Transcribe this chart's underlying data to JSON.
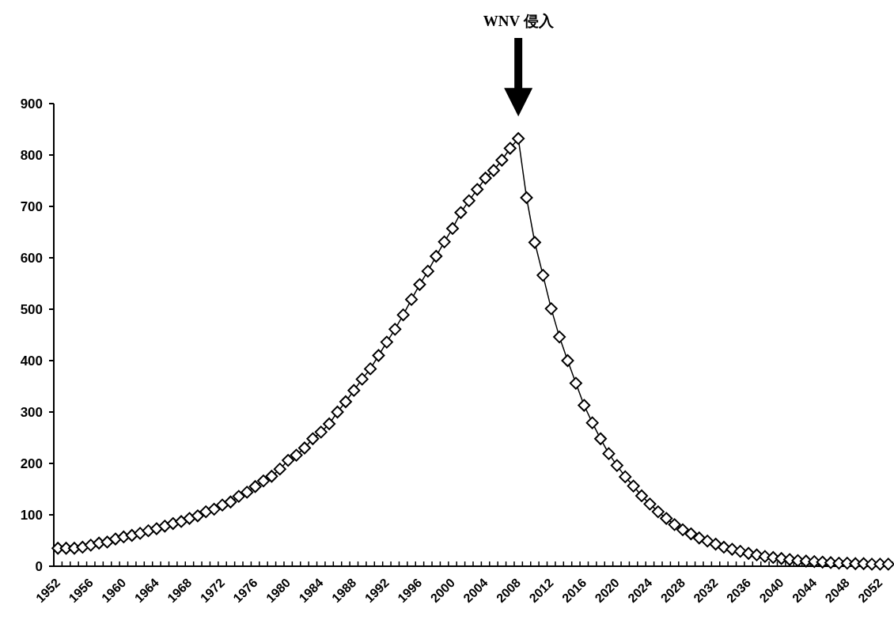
{
  "chart_data": {
    "type": "line",
    "categories": [
      "1952",
      null,
      null,
      null,
      "1956",
      null,
      null,
      null,
      "1960",
      null,
      null,
      null,
      "1964",
      null,
      null,
      null,
      "1968",
      null,
      null,
      null,
      "1972",
      null,
      null,
      null,
      "1976",
      null,
      null,
      null,
      "1980",
      null,
      null,
      null,
      "1984",
      null,
      null,
      null,
      "1988",
      null,
      null,
      null,
      "1992",
      null,
      null,
      null,
      "1996",
      null,
      null,
      null,
      "2000",
      null,
      null,
      null,
      "2004",
      null,
      null,
      null,
      "2008",
      null,
      null,
      null,
      "2012",
      null,
      null,
      null,
      "2016",
      null,
      null,
      null,
      "2020",
      null,
      null,
      null,
      "2024",
      null,
      null,
      null,
      "2028",
      null,
      null,
      null,
      "2032",
      null,
      null,
      null,
      "2036",
      null,
      null,
      null,
      "2040",
      null,
      null,
      null,
      "2044",
      null,
      null,
      null,
      "2048",
      null,
      null,
      null,
      "2052",
      null
    ],
    "values": [
      35,
      35,
      35,
      37,
      41,
      45,
      47,
      53,
      57,
      60,
      64,
      69,
      73,
      78,
      83,
      87,
      93,
      98,
      106,
      111,
      119,
      125,
      136,
      144,
      155,
      166,
      175,
      189,
      206,
      216,
      230,
      248,
      261,
      277,
      300,
      320,
      342,
      364,
      384,
      410,
      436,
      461,
      489,
      519,
      548,
      574,
      603,
      631,
      657,
      688,
      711,
      733,
      755,
      770,
      790,
      813,
      832,
      717,
      630,
      566,
      501,
      446,
      400,
      356,
      313,
      279,
      248,
      219,
      196,
      174,
      156,
      137,
      121,
      106,
      93,
      81,
      71,
      63,
      55,
      49,
      43,
      37,
      33,
      29,
      25,
      22,
      19,
      17,
      15,
      13,
      11,
      10,
      9,
      8,
      7,
      6,
      6,
      5,
      5,
      4,
      4,
      4
    ],
    "color": "#000000",
    "marker": "diamond",
    "line_style": "solid",
    "ylim": [
      0,
      900
    ],
    "yticks": [
      0,
      100,
      200,
      300,
      400,
      500,
      600,
      700,
      800,
      900
    ],
    "annotations": [
      "WNV 侵入"
    ]
  }
}
